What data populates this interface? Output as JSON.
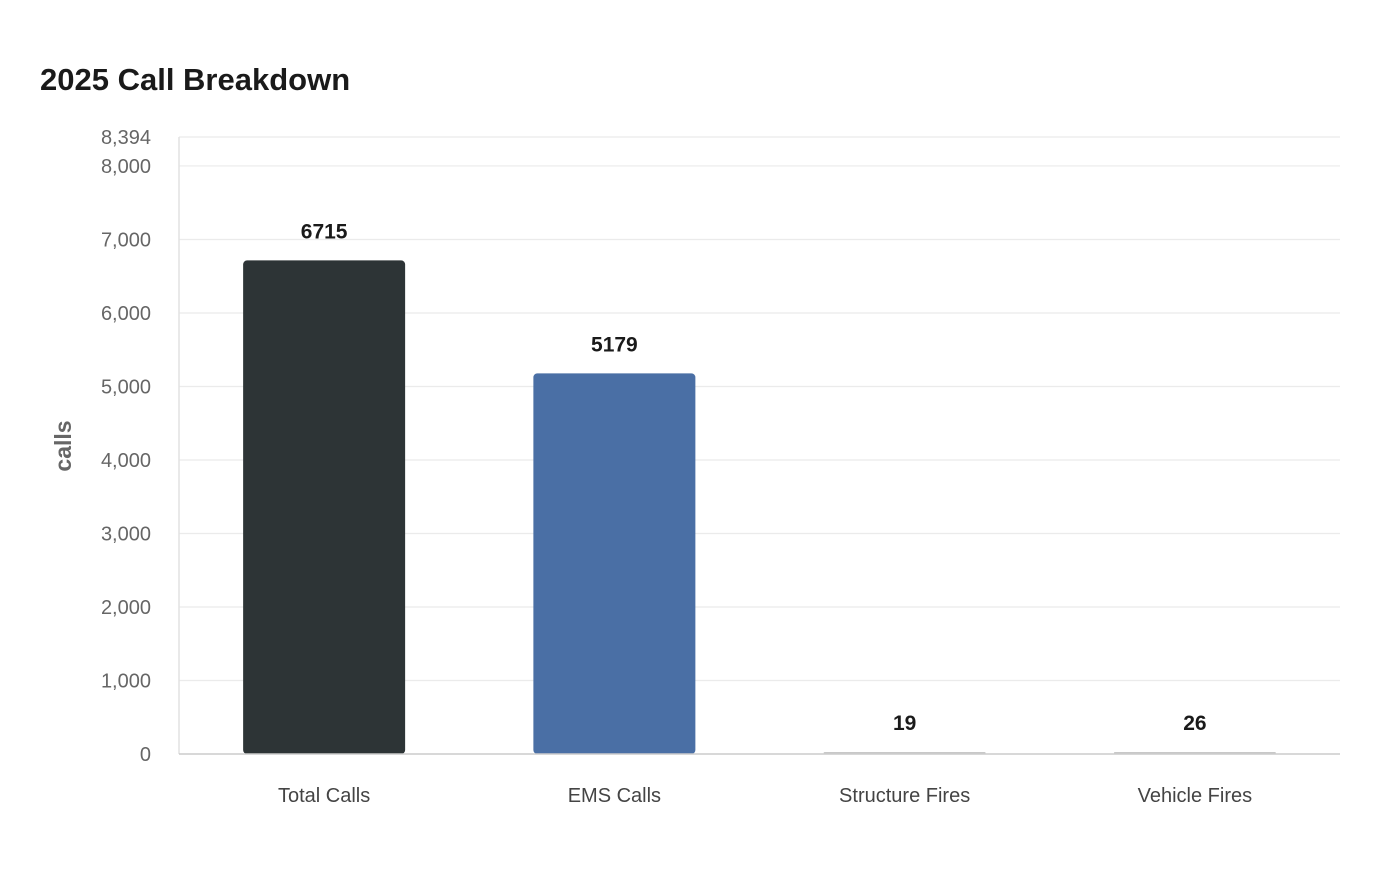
{
  "chart_data": {
    "type": "bar",
    "title": "2025 Call Breakdown",
    "xlabel": "",
    "ylabel": "calls",
    "categories": [
      "Total Calls",
      "EMS Calls",
      "Structure Fires",
      "Vehicle Fires"
    ],
    "values": [
      6715,
      5179,
      19,
      26
    ],
    "data_labels": [
      "6715",
      "5179",
      "19",
      "26"
    ],
    "colors": [
      "#2d3436",
      "#4a6fa5",
      "#c8c8c8",
      "#c8c8c8"
    ],
    "ylim": [
      0,
      8394
    ],
    "yticks": [
      0,
      1000,
      2000,
      3000,
      4000,
      5000,
      6000,
      7000,
      8000,
      8394
    ],
    "ytick_labels": [
      "0",
      "1,000",
      "2,000",
      "3,000",
      "4,000",
      "5,000",
      "6,000",
      "7,000",
      "8,000",
      "8,394"
    ],
    "grid": true,
    "legend": "none"
  }
}
